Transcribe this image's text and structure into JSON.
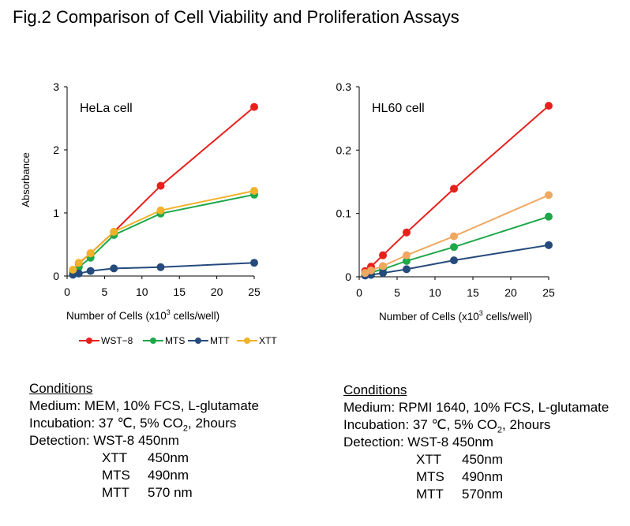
{
  "figure": {
    "title": "Fig.2 Comparison of Cell Viability and Proliferation Assays"
  },
  "chart_data": [
    {
      "type": "line",
      "annotation": "HeLa cell",
      "ylabel": "Absorbance",
      "xlabel_prefix": "Number of Cells (x10",
      "xlabel_sup": "3",
      "xlabel_suffix": " cells/well)",
      "xlim": [
        0,
        25
      ],
      "ylim": [
        0,
        3
      ],
      "xticks": [
        "0",
        "5",
        "10",
        "15",
        "20",
        "25"
      ],
      "xtick_values": [
        0,
        5,
        10,
        15,
        20,
        25
      ],
      "yticks": [
        "0",
        "1",
        "2",
        "3"
      ],
      "ytick_values": [
        0,
        1,
        2,
        3
      ],
      "grid": false,
      "series": [
        {
          "name": "WST-8",
          "color": "#e8201c",
          "x": [
            0.78,
            1.56,
            3.13,
            6.25,
            12.5,
            25
          ],
          "y": [
            0.09,
            0.2,
            0.36,
            0.7,
            1.43,
            2.68
          ]
        },
        {
          "name": "MTS",
          "color": "#1ea84a",
          "x": [
            0.78,
            1.56,
            3.13,
            6.25,
            12.5,
            25
          ],
          "y": [
            0.07,
            0.14,
            0.29,
            0.65,
            0.99,
            1.29
          ]
        },
        {
          "name": "MTT",
          "color": "#254a7c",
          "x": [
            0.78,
            1.56,
            3.13,
            6.25,
            12.5,
            25
          ],
          "y": [
            0.02,
            0.04,
            0.08,
            0.12,
            0.14,
            0.21
          ]
        },
        {
          "name": "XTT",
          "color": "#f2b22a",
          "x": [
            0.78,
            1.56,
            3.13,
            6.25,
            12.5,
            25
          ],
          "y": [
            0.1,
            0.21,
            0.36,
            0.7,
            1.04,
            1.35
          ]
        }
      ]
    },
    {
      "type": "line",
      "annotation": "HL60 cell",
      "ylabel": "",
      "xlabel_prefix": "Number of Cells (x10",
      "xlabel_sup": "3",
      "xlabel_suffix": " cells/well)",
      "xlim": [
        0,
        25
      ],
      "ylim": [
        0,
        0.3
      ],
      "xticks": [
        "0",
        "5",
        "10",
        "15",
        "20",
        "25"
      ],
      "xtick_values": [
        0,
        5,
        10,
        15,
        20,
        25
      ],
      "yticks": [
        "0",
        "0.1",
        "0.2",
        "0.3"
      ],
      "ytick_values": [
        0,
        0.1,
        0.2,
        0.3
      ],
      "grid": false,
      "series": [
        {
          "name": "WST-8",
          "color": "#e8201c",
          "x": [
            0.78,
            1.56,
            3.13,
            6.25,
            12.5,
            25
          ],
          "y": [
            0.009,
            0.016,
            0.034,
            0.07,
            0.139,
            0.27
          ]
        },
        {
          "name": "MTS",
          "color": "#1ea84a",
          "x": [
            0.78,
            1.56,
            3.13,
            6.25,
            12.5,
            25
          ],
          "y": [
            0.004,
            0.007,
            0.012,
            0.025,
            0.047,
            0.095
          ]
        },
        {
          "name": "MTT",
          "color": "#254a7c",
          "x": [
            0.78,
            1.56,
            3.13,
            6.25,
            12.5,
            25
          ],
          "y": [
            0.002,
            0.003,
            0.006,
            0.012,
            0.026,
            0.05
          ]
        },
        {
          "name": "XTT",
          "color": "#f0a860",
          "x": [
            0.78,
            1.56,
            3.13,
            6.25,
            12.5,
            25
          ],
          "y": [
            0.006,
            0.01,
            0.017,
            0.034,
            0.064,
            0.129
          ]
        }
      ]
    }
  ],
  "legend": {
    "placement": "below-left-chart",
    "items": [
      {
        "name": "WST−8",
        "color": "#e8201c"
      },
      {
        "name": "MTS",
        "color": "#1ea84a"
      },
      {
        "name": "MTT",
        "color": "#254a7c"
      },
      {
        "name": "XTT",
        "color": "#f2b22a"
      }
    ]
  },
  "conditions": [
    {
      "heading": "Conditions",
      "medium": "Medium: MEM, 10% FCS, L-glutamate",
      "incubation_prefix": "Incubation: 37 ℃, 5% CO",
      "incubation_sub": "2",
      "incubation_suffix": ", 2hours",
      "detection_label": "Detection: ",
      "detection_rows": [
        {
          "name": "WST-8",
          "wavelength": "450nm"
        },
        {
          "name": "XTT",
          "wavelength": "450nm"
        },
        {
          "name": "MTS",
          "wavelength": "490nm"
        },
        {
          "name": "MTT",
          "wavelength": "570 nm"
        }
      ]
    },
    {
      "heading": "Conditions",
      "medium": "Medium: RPMI 1640, 10% FCS, L-glutamate",
      "incubation_prefix": "Incubation: 37 ℃, 5% CO",
      "incubation_sub": "2",
      "incubation_suffix": ", 2hours",
      "detection_label": "Detection: ",
      "detection_rows": [
        {
          "name": "WST-8",
          "wavelength": "450nm"
        },
        {
          "name": "XTT",
          "wavelength": "450nm"
        },
        {
          "name": "MTS",
          "wavelength": "490nm"
        },
        {
          "name": "MTT",
          "wavelength": "570nm"
        }
      ]
    }
  ]
}
